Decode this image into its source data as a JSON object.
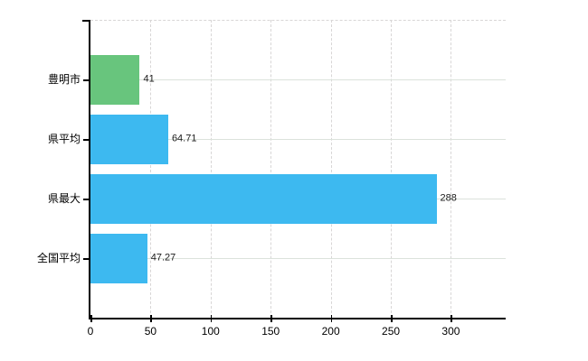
{
  "chart_data": {
    "type": "bar",
    "orientation": "horizontal",
    "title": "",
    "xlabel": "",
    "ylabel": "",
    "categories": [
      "豊明市",
      "県平均",
      "県最大",
      "全国平均"
    ],
    "values": [
      41,
      64.71,
      288,
      47.27
    ],
    "value_labels": [
      "41",
      "64.71",
      "288",
      "47.27"
    ],
    "bar_colors": [
      "#68c57d",
      "#3db9f0",
      "#3db9f0",
      "#3db9f0"
    ],
    "xlim": [
      0,
      345.6
    ],
    "x_ticks": [
      0,
      50,
      100,
      150,
      200,
      250,
      300
    ],
    "x_tick_labels": [
      "0",
      "50",
      "100",
      "150",
      "200",
      "250",
      "300"
    ],
    "grid": {
      "vertical_style": "dashed",
      "horizontal_style": "solid",
      "legend": "none"
    }
  },
  "colors": {
    "background": "#ffffff",
    "axis": "#000000",
    "grid_vertical": "#d8d6d6",
    "grid_horizontal": "#dbe2db",
    "value_text": "#1a1a1a",
    "label_text": "#000000",
    "accent_green": "#68c57d",
    "accent_blue": "#3db9f0"
  }
}
